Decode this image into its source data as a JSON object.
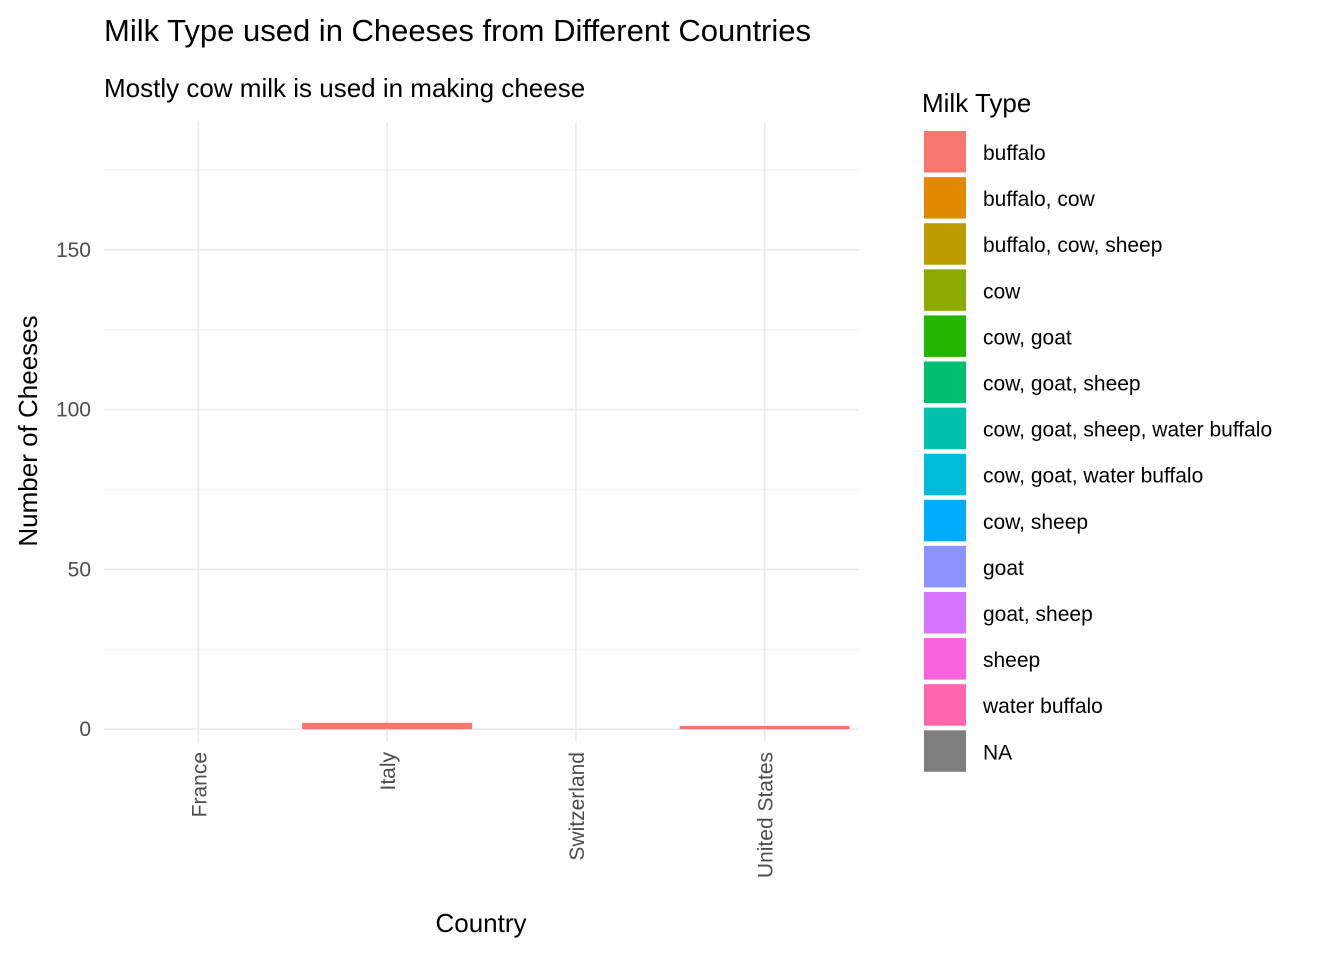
{
  "chart_data": {
    "type": "bar",
    "stacked": true,
    "title": "Milk Type used in Cheeses from Different Countries",
    "subtitle": "Mostly cow milk is used in making cheese",
    "xlabel": "Country",
    "ylabel": "Number of Cheeses",
    "categories": [
      "France",
      "Italy",
      "Switzerland",
      "United States"
    ],
    "ylim": [
      -4,
      190
    ],
    "yticks": [
      0,
      50,
      100,
      150
    ],
    "ytick_labels": [
      "0",
      "50",
      "100",
      "150"
    ],
    "grid": true,
    "legend_title": "Milk Type",
    "legend_position": "right",
    "series": [
      {
        "name": "buffalo",
        "color": "#F8766D",
        "values": [
          0,
          2,
          0,
          1
        ]
      },
      {
        "name": "buffalo, cow",
        "color": "#E18A00",
        "values": [
          0,
          0,
          0,
          0
        ]
      },
      {
        "name": "buffalo, cow, sheep",
        "color": "#BE9C00",
        "values": [
          0,
          0,
          0,
          0
        ]
      },
      {
        "name": "cow",
        "color": "#8CAB00",
        "values": [
          0,
          0,
          0,
          0
        ]
      },
      {
        "name": "cow, goat",
        "color": "#24B700",
        "values": [
          0,
          0,
          0,
          0
        ]
      },
      {
        "name": "cow, goat, sheep",
        "color": "#00BE70",
        "values": [
          0,
          0,
          0,
          0
        ]
      },
      {
        "name": "cow, goat, sheep, water buffalo",
        "color": "#00C1AB",
        "values": [
          0,
          0,
          0,
          0
        ]
      },
      {
        "name": "cow, goat, water buffalo",
        "color": "#00BBDA",
        "values": [
          0,
          0,
          0,
          0
        ]
      },
      {
        "name": "cow, sheep",
        "color": "#00ACFC",
        "values": [
          0,
          0,
          0,
          0
        ]
      },
      {
        "name": "goat",
        "color": "#8B93FF",
        "values": [
          0,
          0,
          0,
          0
        ]
      },
      {
        "name": "goat, sheep",
        "color": "#D575FE",
        "values": [
          0,
          0,
          0,
          0
        ]
      },
      {
        "name": "sheep",
        "color": "#F962DD",
        "values": [
          0,
          0,
          0,
          0
        ]
      },
      {
        "name": "water buffalo",
        "color": "#FF65AC",
        "values": [
          0,
          0,
          0,
          0
        ]
      },
      {
        "name": "NA",
        "color": "#7F7F7F",
        "values": [
          0,
          0,
          0,
          0
        ]
      }
    ]
  }
}
